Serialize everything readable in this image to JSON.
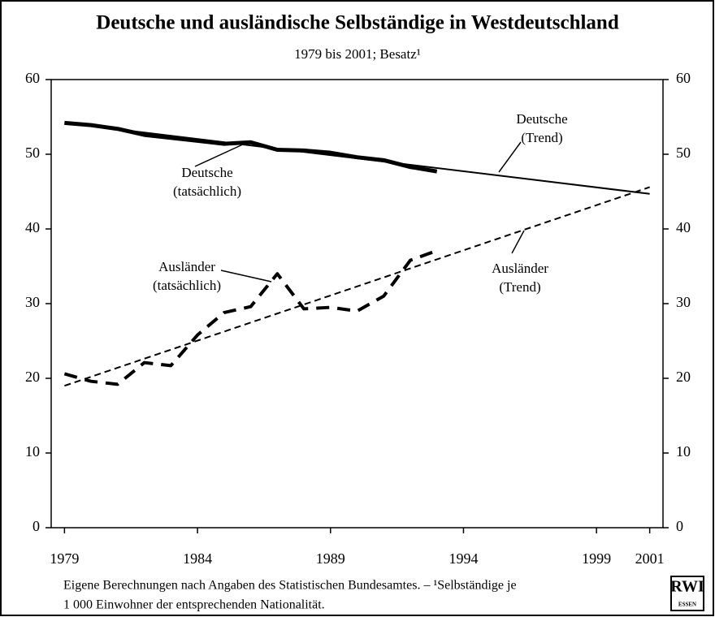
{
  "chart_data": {
    "type": "line",
    "title": "Deutsche und ausländische Selbständige in Westdeutschland",
    "subtitle": "1979 bis 2001; Besatz¹",
    "xlim": [
      1978.5,
      2001.5
    ],
    "xticks": [
      1979,
      1984,
      1989,
      1994,
      1999,
      2001
    ],
    "ylim": [
      0,
      60
    ],
    "yticks": [
      0,
      10,
      20,
      30,
      40,
      50,
      60
    ],
    "y2lim": [
      0,
      60
    ],
    "y2ticks": [
      0,
      10,
      20,
      30,
      40,
      50,
      60
    ],
    "series": [
      {
        "x": [
          1979,
          1980,
          1981,
          1982,
          1983,
          1984,
          1985,
          1986,
          1987,
          1988,
          1989,
          1990,
          1991,
          1992,
          1993
        ],
        "values": [
          54.2,
          53.9,
          53.4,
          52.6,
          52.2,
          51.8,
          51.4,
          51.6,
          50.6,
          50.5,
          50.2,
          49.6,
          49.2,
          48.3,
          47.7
        ],
        "color": "#000",
        "dash": "solid",
        "width": 5
      },
      {
        "x": [
          1979,
          2001
        ],
        "values": [
          54.2,
          44.7
        ],
        "color": "#000",
        "dash": "solid",
        "width": 2
      },
      {
        "x": [
          1979,
          1980,
          1981,
          1982,
          1983,
          1984,
          1985,
          1986,
          1987,
          1988,
          1989,
          1990,
          1991,
          1992,
          1993
        ],
        "values": [
          20.6,
          19.6,
          19.2,
          22.1,
          21.7,
          25.8,
          28.8,
          29.6,
          34.0,
          29.3,
          29.5,
          29.0,
          31.0,
          35.8,
          37.1
        ],
        "color": "#000",
        "dash": "dashed",
        "width": 4
      },
      {
        "x": [
          1979,
          2001
        ],
        "values": [
          19.0,
          45.6
        ],
        "color": "#000",
        "dash": "dashed",
        "width": 2
      }
    ],
    "annotations": [
      {
        "lines": [
          "Deutsche",
          "(Trend)"
        ]
      },
      {
        "lines": [
          "Deutsche",
          "(tatsächlich)"
        ]
      },
      {
        "lines": [
          "Ausländer",
          "(tatsächlich)"
        ]
      },
      {
        "lines": [
          "Ausländer",
          "(Trend)"
        ]
      }
    ],
    "footnote": [
      "Eigene Berechnungen nach Angaben des Statistischen Bundesamtes. – ¹Selbständige je",
      "1 000 Einwohner der entsprechenden Nationalität."
    ],
    "logo": [
      "RWI",
      "ESSEN"
    ]
  }
}
